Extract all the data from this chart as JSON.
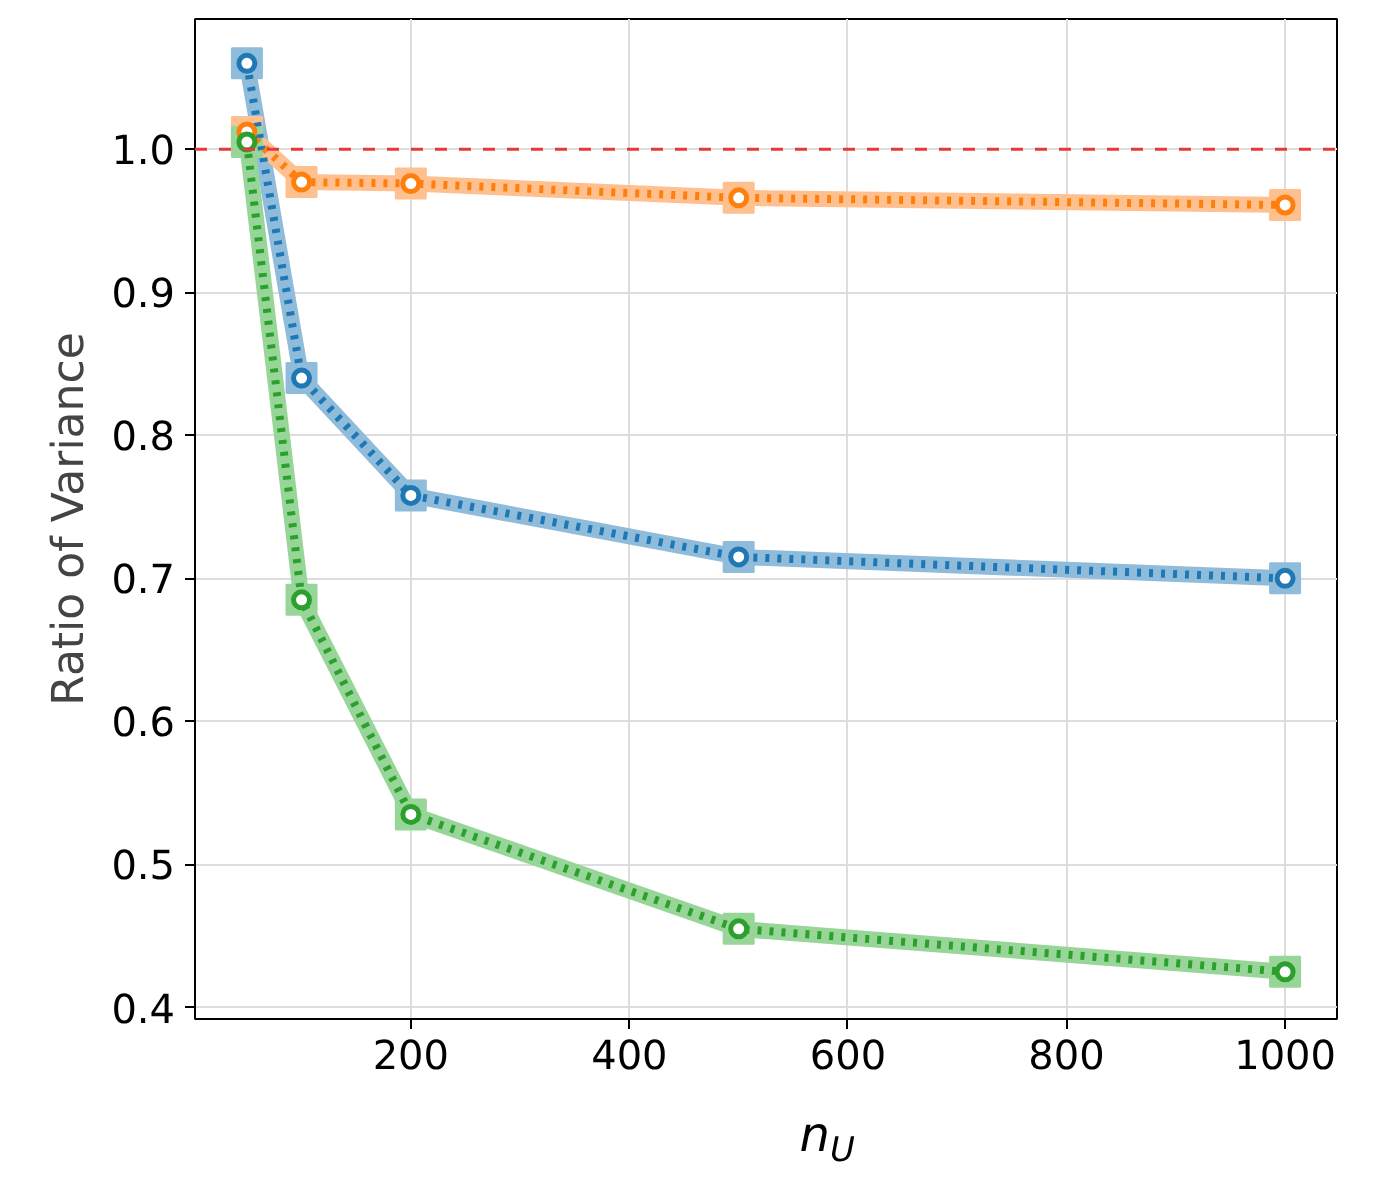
{
  "chart_data": {
    "type": "line",
    "xlabel": "n$_{U}$",
    "ylabel": "Ratio of Variance",
    "x": [
      50,
      100,
      200,
      500,
      1000
    ],
    "series": [
      {
        "color": "#8fbcdb",
        "marker": "square",
        "line_style": "solid",
        "values": [
          1.06,
          0.84,
          0.758,
          0.715,
          0.7
        ]
      },
      {
        "color": "#ffc08f",
        "marker": "square",
        "line_style": "solid",
        "values": [
          1.012,
          0.977,
          0.976,
          0.966,
          0.961
        ]
      },
      {
        "color": "#98d598",
        "marker": "square",
        "line_style": "solid",
        "values": [
          1.005,
          0.685,
          0.535,
          0.455,
          0.425
        ]
      },
      {
        "color": "#1f77b4",
        "marker": "circle",
        "line_style": "dotted",
        "values": [
          1.06,
          0.84,
          0.758,
          0.715,
          0.7
        ]
      },
      {
        "color": "#ff7f0e",
        "marker": "circle",
        "line_style": "dotted",
        "values": [
          1.012,
          0.977,
          0.976,
          0.966,
          0.961
        ]
      },
      {
        "color": "#2ca02c",
        "marker": "circle",
        "line_style": "dotted",
        "values": [
          1.005,
          0.685,
          0.535,
          0.455,
          0.425
        ]
      }
    ],
    "xlim": [
      2.5,
      1047.5
    ],
    "ylim": [
      0.392,
      1.091
    ],
    "xticks": [
      200,
      400,
      600,
      800,
      1000
    ],
    "yticks": [
      0.4,
      0.5,
      0.6,
      0.7,
      0.8,
      0.9,
      {
        "value": 1.0,
        "label": "1.0"
      }
    ],
    "ref_lines": [
      {
        "axis": "y",
        "value": 1.0,
        "color": "#e8383a",
        "line_style": "dashed"
      }
    ],
    "grid": true
  }
}
